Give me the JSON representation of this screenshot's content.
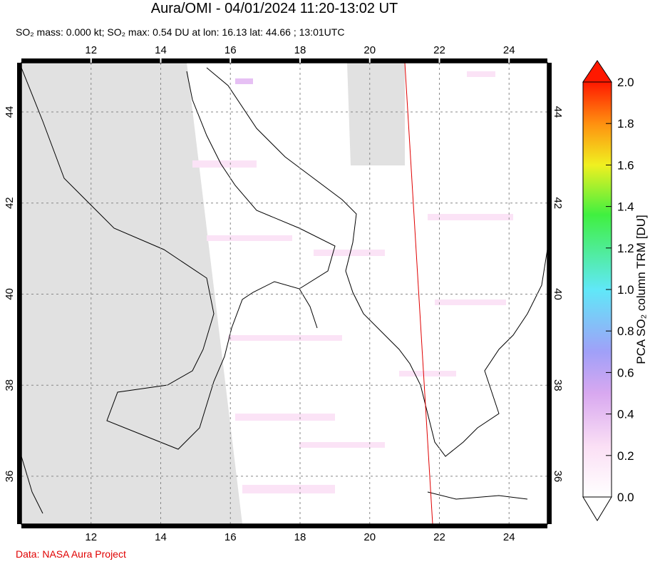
{
  "title": "Aura/OMI - 04/01/2024 11:20-13:02 UT",
  "subtitle": "SO₂ mass: 0.000 kt; SO₂ max: 0.54 DU at lon: 16.13 lat: 44.66 ; 13:01UTC",
  "map": {
    "xlim": [
      10,
      25.1
    ],
    "ylim": [
      34.95,
      45.08
    ],
    "xticks": [
      12,
      14,
      16,
      18,
      20,
      22,
      24
    ],
    "yticks": [
      36,
      38,
      40,
      42,
      44
    ],
    "grid": true
  },
  "colorbar": {
    "label": "PCA SO₂ column TRM [DU]",
    "lim": [
      0,
      2
    ],
    "ticks": [
      {
        "value": 0,
        "label": "0.0"
      },
      0.2,
      0.4,
      0.6,
      0.8,
      {
        "value": 1,
        "label": "1.0"
      },
      1.2,
      1.4,
      1.6,
      1.8,
      {
        "value": 2,
        "label": "2.0"
      }
    ]
  },
  "credit": "Data: NASA Aura Project"
}
